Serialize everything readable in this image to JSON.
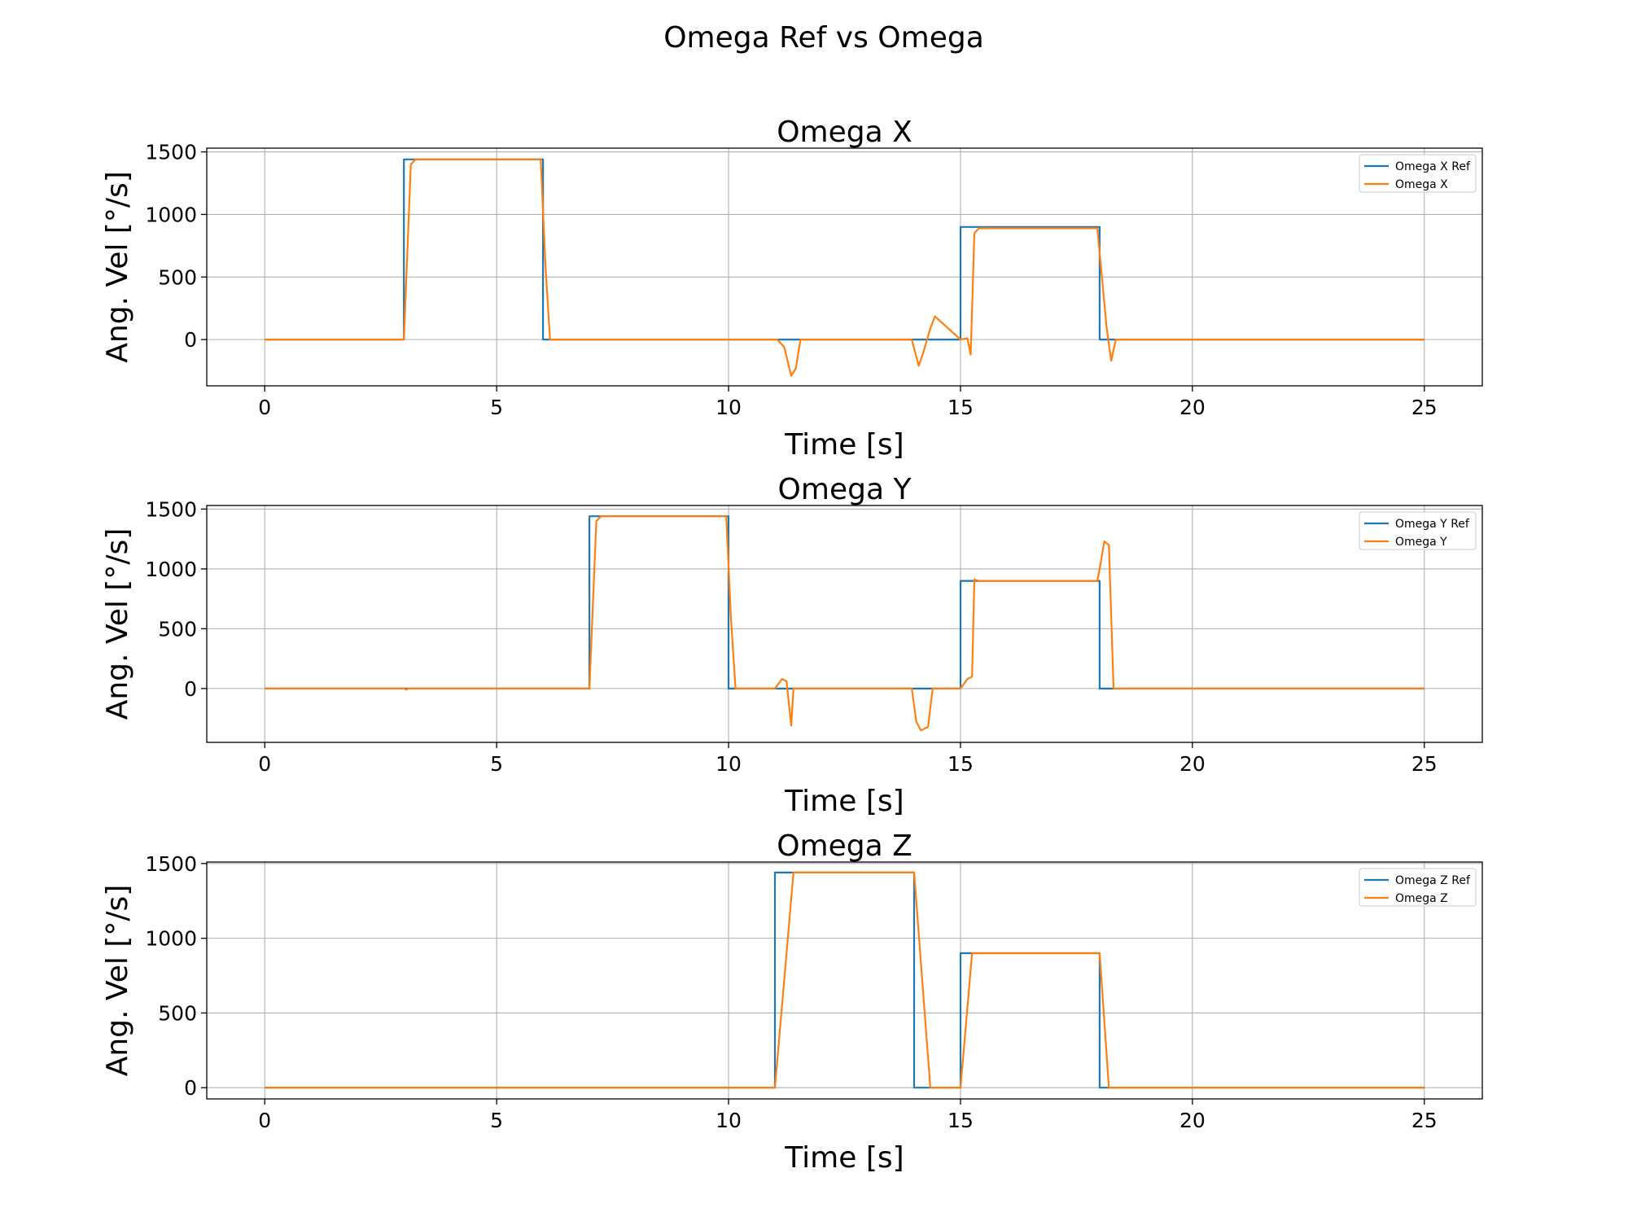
{
  "figure": {
    "suptitle": "Omega Ref vs Omega"
  },
  "colors": {
    "ref": "#1f77b4",
    "actual": "#ff7f0e",
    "grid": "#b0b0b0"
  },
  "chart_data": [
    {
      "type": "line",
      "title": "Omega X",
      "xlabel": "Time [s]",
      "ylabel": "Ang. Vel [°/s]",
      "xlim": [
        -1.25,
        26.25
      ],
      "ylim": [
        -370,
        1530
      ],
      "xticks": [
        0,
        5,
        10,
        15,
        20,
        25
      ],
      "yticks": [
        0,
        500,
        1000,
        1500
      ],
      "grid": true,
      "legend_position": "upper right",
      "series": [
        {
          "name": "Omega X Ref",
          "color": "#1f77b4",
          "x": [
            0,
            3.0,
            3.0,
            6.0,
            6.0,
            15.0,
            15.0,
            18.0,
            18.0,
            25
          ],
          "y": [
            0,
            0,
            1440,
            1440,
            0,
            0,
            900,
            900,
            0,
            0
          ]
        },
        {
          "name": "Omega X",
          "color": "#ff7f0e",
          "x": [
            0,
            3.0,
            3.15,
            3.25,
            5.95,
            6.05,
            6.15,
            7.0,
            10.0,
            11.05,
            11.2,
            11.35,
            11.45,
            11.55,
            13.95,
            14.1,
            14.2,
            14.35,
            14.45,
            15.0,
            15.15,
            15.22,
            15.3,
            15.4,
            17.95,
            18.05,
            18.15,
            18.25,
            18.35,
            25
          ],
          "y": [
            0,
            0,
            1400,
            1440,
            1440,
            600,
            0,
            0,
            0,
            0,
            -60,
            -290,
            -230,
            0,
            0,
            -210,
            -100,
            90,
            185,
            0,
            10,
            -120,
            850,
            890,
            890,
            500,
            100,
            -170,
            0,
            0
          ]
        }
      ]
    },
    {
      "type": "line",
      "title": "Omega Y",
      "xlabel": "Time [s]",
      "ylabel": "Ang. Vel [°/s]",
      "xlim": [
        -1.25,
        26.25
      ],
      "ylim": [
        -450,
        1530
      ],
      "xticks": [
        0,
        5,
        10,
        15,
        20,
        25
      ],
      "yticks": [
        0,
        500,
        1000,
        1500
      ],
      "grid": true,
      "legend_position": "upper right",
      "series": [
        {
          "name": "Omega Y Ref",
          "color": "#1f77b4",
          "x": [
            0,
            7.0,
            7.0,
            10.0,
            10.0,
            15.0,
            15.0,
            18.0,
            18.0,
            25
          ],
          "y": [
            0,
            0,
            1440,
            1440,
            0,
            0,
            900,
            900,
            0,
            0
          ]
        },
        {
          "name": "Omega Y",
          "color": "#ff7f0e",
          "x": [
            0,
            3.0,
            3.05,
            3.1,
            7.0,
            7.15,
            7.25,
            9.95,
            10.05,
            10.15,
            11.0,
            11.15,
            11.25,
            11.35,
            11.4,
            11.5,
            13.95,
            14.05,
            14.15,
            14.3,
            14.4,
            15.0,
            15.15,
            15.25,
            15.3,
            15.4,
            17.95,
            18.0,
            18.1,
            18.2,
            18.3,
            25
          ],
          "y": [
            0,
            0,
            -10,
            0,
            0,
            1400,
            1440,
            1440,
            600,
            0,
            0,
            80,
            60,
            -310,
            0,
            0,
            0,
            -280,
            -350,
            -320,
            0,
            0,
            80,
            100,
            910,
            900,
            900,
            1000,
            1230,
            1200,
            0,
            0
          ]
        }
      ]
    },
    {
      "type": "line",
      "title": "Omega Z",
      "xlabel": "Time [s]",
      "ylabel": "Ang. Vel [°/s]",
      "xlim": [
        -1.25,
        26.25
      ],
      "ylim": [
        -75,
        1510
      ],
      "xticks": [
        0,
        5,
        10,
        15,
        20,
        25
      ],
      "yticks": [
        0,
        500,
        1000,
        1500
      ],
      "grid": true,
      "legend_position": "upper right",
      "series": [
        {
          "name": "Omega Z Ref",
          "color": "#1f77b4",
          "x": [
            0,
            11.0,
            11.0,
            14.0,
            14.0,
            15.0,
            15.0,
            18.0,
            18.0,
            25
          ],
          "y": [
            0,
            0,
            1440,
            1440,
            0,
            0,
            900,
            900,
            0,
            0
          ]
        },
        {
          "name": "Omega Z",
          "color": "#ff7f0e",
          "x": [
            0,
            11.0,
            11.4,
            14.0,
            14.35,
            15.0,
            15.25,
            18.0,
            18.2,
            25
          ],
          "y": [
            0,
            0,
            1440,
            1440,
            0,
            0,
            900,
            900,
            0,
            0
          ]
        }
      ]
    }
  ]
}
